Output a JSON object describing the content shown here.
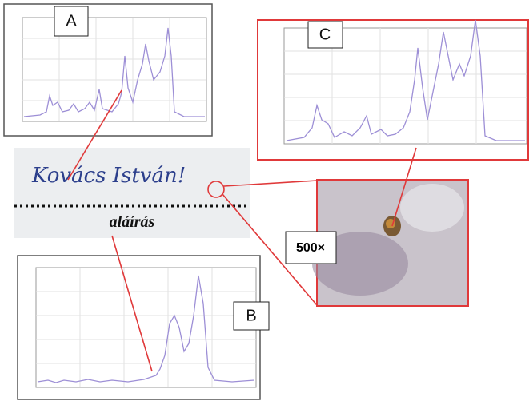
{
  "panels": {
    "a": {
      "label": "A"
    },
    "b": {
      "label": "B"
    },
    "c": {
      "label": "C"
    }
  },
  "signature": {
    "handwriting": "Kovács István!",
    "caption": "aláírás"
  },
  "microscope": {
    "magnification": "500×"
  }
}
